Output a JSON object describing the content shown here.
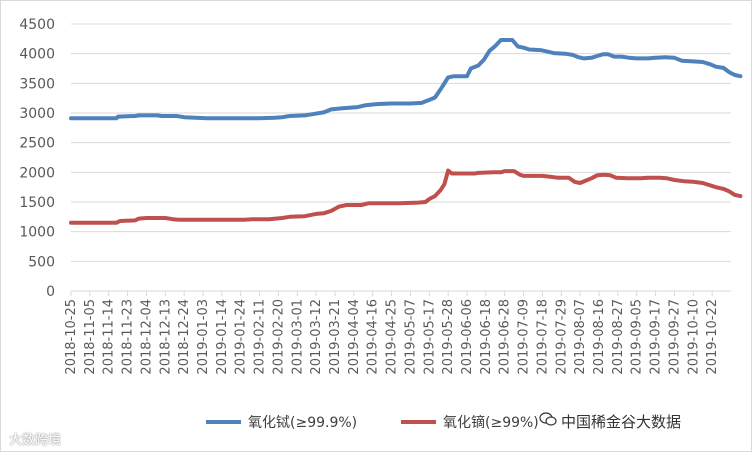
{
  "chart_data": {
    "type": "line",
    "title": "",
    "xlabel": "",
    "ylabel": "",
    "ylim": [
      0,
      4500
    ],
    "yticks": [
      0,
      500,
      1000,
      1500,
      2000,
      2500,
      3000,
      3500,
      4000,
      4500
    ],
    "grid": "horizontal",
    "legend_position": "bottom",
    "x_tick_labels": [
      "2018-10-25",
      "2018-11-05",
      "2018-11-14",
      "2018-11-23",
      "2018-12-04",
      "2018-12-13",
      "2018-12-24",
      "2019-01-03",
      "2019-01-14",
      "2019-01-24",
      "2019-02-11",
      "2019-02-20",
      "2019-03-01",
      "2019-03-12",
      "2019-03-21",
      "2019-04-04",
      "2019-04-16",
      "2019-04-25",
      "2019-05-07",
      "2019-05-17",
      "2019-05-28",
      "2019-06-06",
      "2019-06-18",
      "2019-06-28",
      "2019-07-09",
      "2019-07-18",
      "2019-07-29",
      "2019-08-07",
      "2019-08-16",
      "2019-08-27",
      "2019-09-05",
      "2019-09-17",
      "2019-09-27",
      "2019-10-10",
      "2019-10-22"
    ],
    "series": [
      {
        "name": "氧化铽(≥99.9%)",
        "color": "#4f81bd",
        "points": [
          [
            0,
            2910
          ],
          [
            1.5,
            2910
          ],
          [
            2.4,
            2910
          ],
          [
            2.5,
            2940
          ],
          [
            3.4,
            2950
          ],
          [
            3.6,
            2960
          ],
          [
            4.6,
            2960
          ],
          [
            4.8,
            2950
          ],
          [
            5.6,
            2950
          ],
          [
            6.0,
            2930
          ],
          [
            6.6,
            2920
          ],
          [
            7.2,
            2910
          ],
          [
            8,
            2910
          ],
          [
            9,
            2910
          ],
          [
            10,
            2910
          ],
          [
            10.8,
            2920
          ],
          [
            11.2,
            2930
          ],
          [
            11.6,
            2950
          ],
          [
            12.4,
            2960
          ],
          [
            12.8,
            2980
          ],
          [
            13.4,
            3010
          ],
          [
            13.8,
            3060
          ],
          [
            14.4,
            3080
          ],
          [
            15.2,
            3100
          ],
          [
            15.6,
            3130
          ],
          [
            16.2,
            3150
          ],
          [
            17,
            3160
          ],
          [
            18,
            3160
          ],
          [
            18.6,
            3170
          ],
          [
            19.0,
            3220
          ],
          [
            19.3,
            3260
          ],
          [
            19.6,
            3400
          ],
          [
            19.8,
            3500
          ],
          [
            20.0,
            3600
          ],
          [
            20.3,
            3620
          ],
          [
            21.0,
            3620
          ],
          [
            21.2,
            3750
          ],
          [
            21.6,
            3800
          ],
          [
            21.9,
            3900
          ],
          [
            22.2,
            4050
          ],
          [
            22.5,
            4130
          ],
          [
            22.8,
            4230
          ],
          [
            23.4,
            4230
          ],
          [
            23.7,
            4120
          ],
          [
            24.0,
            4100
          ],
          [
            24.3,
            4070
          ],
          [
            24.9,
            4060
          ],
          [
            25.2,
            4040
          ],
          [
            25.6,
            4010
          ],
          [
            26.2,
            4000
          ],
          [
            26.6,
            3980
          ],
          [
            26.9,
            3940
          ],
          [
            27.2,
            3920
          ],
          [
            27.6,
            3930
          ],
          [
            27.9,
            3960
          ],
          [
            28.2,
            3990
          ],
          [
            28.5,
            3990
          ],
          [
            28.8,
            3950
          ],
          [
            29.2,
            3950
          ],
          [
            29.6,
            3930
          ],
          [
            30.0,
            3920
          ],
          [
            30.6,
            3920
          ],
          [
            31.0,
            3930
          ],
          [
            31.5,
            3940
          ],
          [
            32.0,
            3930
          ],
          [
            32.4,
            3880
          ],
          [
            33.0,
            3870
          ],
          [
            33.5,
            3860
          ],
          [
            33.9,
            3820
          ],
          [
            34.2,
            3780
          ],
          [
            34.6,
            3760
          ],
          [
            34.9,
            3690
          ],
          [
            35.2,
            3640
          ],
          [
            35.5,
            3620
          ]
        ]
      },
      {
        "name": "氧化镝(≥99%)",
        "color": "#c0504d",
        "points": [
          [
            0,
            1150
          ],
          [
            1.5,
            1150
          ],
          [
            2.4,
            1150
          ],
          [
            2.6,
            1180
          ],
          [
            3.4,
            1190
          ],
          [
            3.6,
            1220
          ],
          [
            4,
            1230
          ],
          [
            5,
            1230
          ],
          [
            5.4,
            1210
          ],
          [
            5.7,
            1200
          ],
          [
            6.4,
            1200
          ],
          [
            7.2,
            1200
          ],
          [
            8,
            1200
          ],
          [
            9.2,
            1200
          ],
          [
            9.6,
            1210
          ],
          [
            10.5,
            1210
          ],
          [
            11.2,
            1230
          ],
          [
            11.6,
            1250
          ],
          [
            12.4,
            1260
          ],
          [
            13.0,
            1300
          ],
          [
            13.4,
            1310
          ],
          [
            13.8,
            1350
          ],
          [
            14.2,
            1420
          ],
          [
            14.6,
            1450
          ],
          [
            15.4,
            1450
          ],
          [
            15.8,
            1480
          ],
          [
            16.6,
            1480
          ],
          [
            17.4,
            1480
          ],
          [
            18.4,
            1490
          ],
          [
            18.8,
            1500
          ],
          [
            19.0,
            1550
          ],
          [
            19.3,
            1600
          ],
          [
            19.6,
            1700
          ],
          [
            19.8,
            1800
          ],
          [
            20.0,
            2030
          ],
          [
            20.2,
            1980
          ],
          [
            21.4,
            1980
          ],
          [
            21.6,
            1990
          ],
          [
            22.4,
            2000
          ],
          [
            22.8,
            2000
          ],
          [
            23.0,
            2020
          ],
          [
            23.5,
            2020
          ],
          [
            23.8,
            1960
          ],
          [
            24.0,
            1940
          ],
          [
            25.0,
            1940
          ],
          [
            25.3,
            1930
          ],
          [
            25.8,
            1910
          ],
          [
            26.4,
            1910
          ],
          [
            26.7,
            1840
          ],
          [
            27.0,
            1820
          ],
          [
            27.3,
            1860
          ],
          [
            27.6,
            1900
          ],
          [
            27.9,
            1950
          ],
          [
            28.3,
            1960
          ],
          [
            28.6,
            1950
          ],
          [
            28.9,
            1910
          ],
          [
            29.5,
            1900
          ],
          [
            30.2,
            1900
          ],
          [
            30.6,
            1910
          ],
          [
            31.2,
            1910
          ],
          [
            31.6,
            1900
          ],
          [
            32.0,
            1870
          ],
          [
            32.5,
            1850
          ],
          [
            33.0,
            1840
          ],
          [
            33.5,
            1820
          ],
          [
            33.9,
            1780
          ],
          [
            34.2,
            1750
          ],
          [
            34.6,
            1720
          ],
          [
            34.9,
            1680
          ],
          [
            35.2,
            1620
          ],
          [
            35.5,
            1600
          ]
        ]
      }
    ]
  },
  "watermarks": {
    "left_text": "大数跨境",
    "right_text": "中国稀金谷大数据"
  }
}
